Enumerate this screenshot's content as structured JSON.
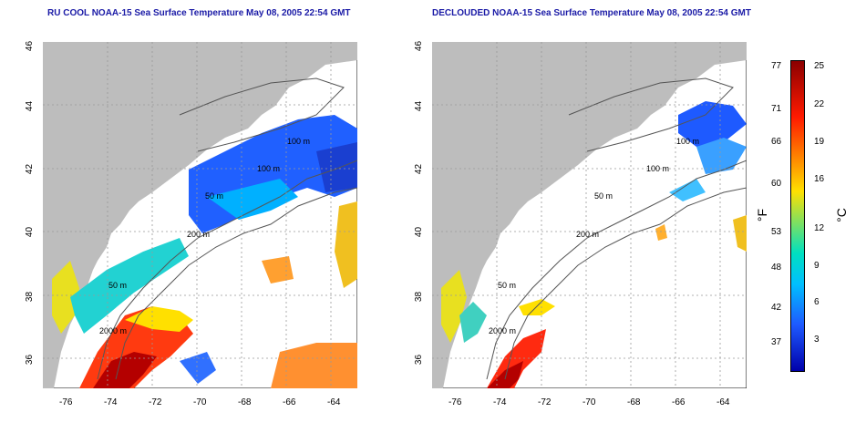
{
  "left": {
    "title": "RU COOL NOAA-15 Sea Surface Temperature May 08, 2005 22:54 GMT",
    "labels": [
      "100 m",
      "100 m",
      "50 m",
      "200 m",
      "50 m",
      "2000 m"
    ]
  },
  "right": {
    "title": "DECLOUDED NOAA-15 Sea Surface Temperature May 08, 2005 22:54 GMT",
    "labels": [
      "100 m",
      "100 m",
      "50 m",
      "200 m",
      "50 m",
      "2000 m"
    ]
  },
  "axes": {
    "x_ticks": [
      "-76",
      "-74",
      "-72",
      "-70",
      "-68",
      "-66",
      "-64"
    ],
    "y_ticks": [
      "46",
      "44",
      "42",
      "40",
      "38",
      "36"
    ]
  },
  "colorbar": {
    "f_label": "°F",
    "c_label": "°C",
    "f_ticks": [
      "77",
      "71",
      "66",
      "60",
      "53",
      "48",
      "42",
      "37"
    ],
    "c_ticks": [
      "25",
      "22",
      "19",
      "16",
      "12",
      "9",
      "6",
      "3"
    ],
    "colors": [
      "#8b0000",
      "#ff0000",
      "#ff8c00",
      "#ffff00",
      "#00e0c0",
      "#00bfff",
      "#1e5aff",
      "#0000aa"
    ]
  }
}
